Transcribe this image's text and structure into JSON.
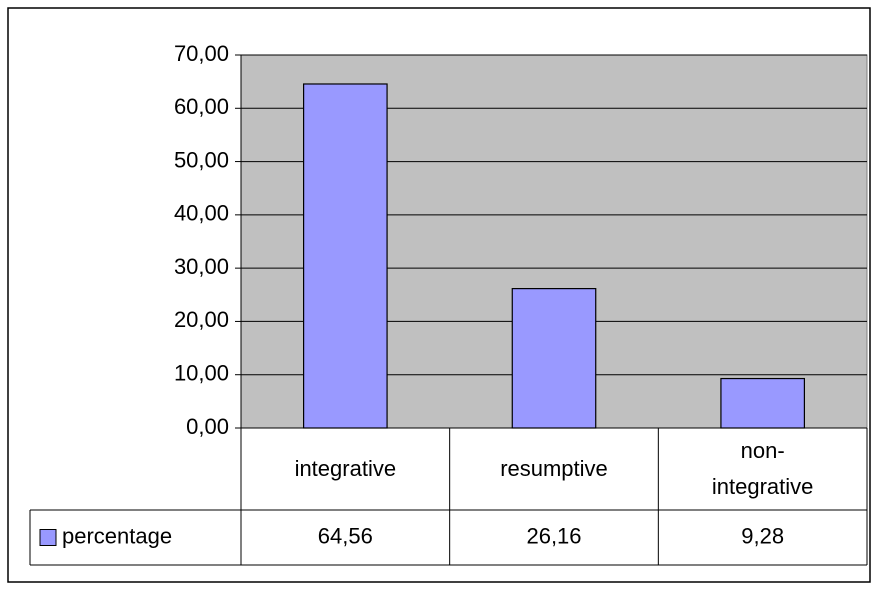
{
  "chart_data": {
    "type": "bar",
    "categories": [
      "integrative",
      "resumptive",
      "non-integrative"
    ],
    "series": [
      {
        "name": "percentage",
        "color": "#9999ff",
        "values": [
          64.56,
          26.16,
          9.28
        ],
        "value_labels": [
          "64,56",
          "26,16",
          "9,28"
        ]
      }
    ],
    "ylim": [
      0,
      70
    ],
    "yticks": [
      {
        "value": 0,
        "label": "0,00"
      },
      {
        "value": 10,
        "label": "10,00"
      },
      {
        "value": 20,
        "label": "20,00"
      },
      {
        "value": 30,
        "label": "30,00"
      },
      {
        "value": 40,
        "label": "40,00"
      },
      {
        "value": 50,
        "label": "50,00"
      },
      {
        "value": 60,
        "label": "60,00"
      },
      {
        "value": 70,
        "label": "70,00"
      }
    ],
    "grid": true,
    "plot_background": "#c0c0c0"
  }
}
